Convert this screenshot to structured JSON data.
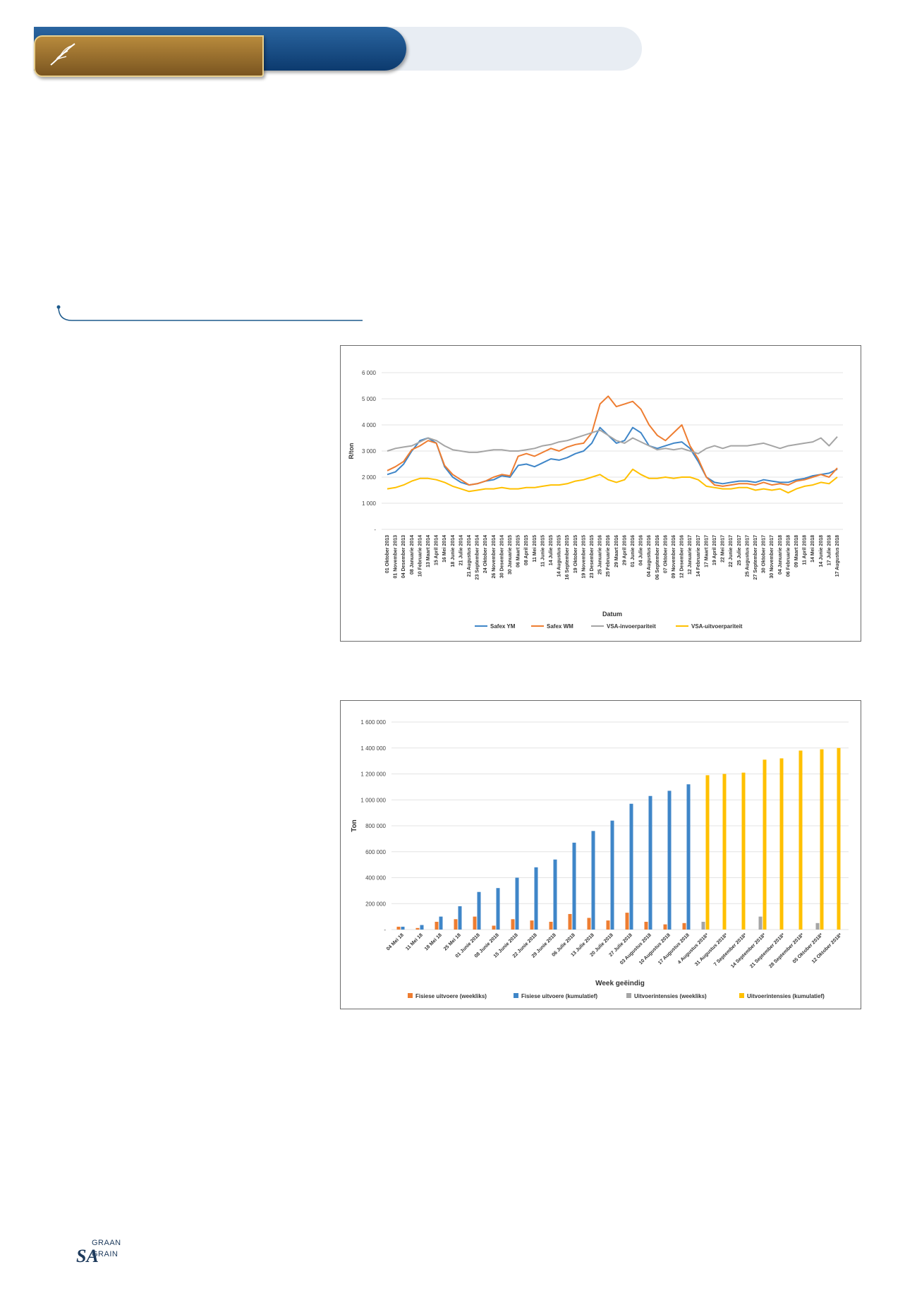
{
  "footer": {
    "logo_sa": "SA",
    "logo_graan": "GRAAN",
    "logo_grain": "GRAIN"
  },
  "colors": {
    "banner_blue": "#12457c",
    "banner_gold": "#9c7130",
    "rule": "#1d5a8c"
  },
  "chart_data": [
    {
      "type": "line",
      "ylabel": "R/ton",
      "xlabel": "Datum",
      "ylim": [
        0,
        6000
      ],
      "yticks": [
        0,
        1000,
        2000,
        3000,
        4000,
        5000,
        6000
      ],
      "ytick_labels": [
        "-",
        "1 000",
        "2 000",
        "3 000",
        "4 000",
        "5 000",
        "6 000"
      ],
      "grid": true,
      "legend": "bottom",
      "x_labels": [
        "01 Oktober 2013",
        "01 November 2013",
        "04 Desember 2013",
        "08 Januarie 2014",
        "10 Februarie 2014",
        "13 Maart 2014",
        "15 April 2014",
        "16 Mei 2014",
        "18 Junie 2014",
        "21 Julie 2014",
        "21 Augustus 2014",
        "23 September 2014",
        "24 Oktober 2014",
        "26 November 2014",
        "30 Desember 2014",
        "30 Januarie 2015",
        "06 Maart 2015",
        "08 April 2015",
        "11 Mei 2015",
        "11 Junie 2015",
        "14 Julie 2015",
        "14 Augustus 2015",
        "16 September 2015",
        "19 Oktober 2015",
        "19 November 2015",
        "23 Desember 2015",
        "25 Januarie 2016",
        "25 Februarie 2016",
        "29 Maart 2016",
        "29 April 2016",
        "01 Junie 2016",
        "04 Julie 2016",
        "04 Augustus 2016",
        "06 September 2016",
        "07 Oktober 2016",
        "09 November 2016",
        "12 Desember 2016",
        "12 Januarie 2017",
        "14 Februarie 2017",
        "17 Maart 2017",
        "19 April 2017",
        "22 Mei 2017",
        "22 Junie 2017",
        "25 Julie 2017",
        "25 Augustus 2017",
        "27 September 2017",
        "30 Oktober 2017",
        "30 November 2017",
        "04 Januarie 2018",
        "06 Februarie 2018",
        "09 Maart 2018",
        "11 April 2018",
        "14 Mei 2018",
        "14 Junie 2018",
        "17 Julie 2018",
        "17 Augustus 2018"
      ],
      "series": [
        {
          "name": "Safex YM",
          "color": "#3f86c8",
          "values": [
            2100,
            2200,
            2500,
            3000,
            3400,
            3500,
            3300,
            2400,
            2000,
            1800,
            1700,
            1750,
            1850,
            1900,
            2050,
            2000,
            2450,
            2500,
            2400,
            2550,
            2700,
            2650,
            2750,
            2900,
            3000,
            3300,
            3900,
            3600,
            3300,
            3400,
            3900,
            3700,
            3200,
            3100,
            3200,
            3300,
            3350,
            3100,
            2600,
            2000,
            1800,
            1750,
            1800,
            1850,
            1850,
            1800,
            1900,
            1850,
            1800,
            1800,
            1900,
            1950,
            2050,
            2100,
            2150,
            2300
          ]
        },
        {
          "name": "Safex WM",
          "color": "#ee7d31",
          "values": [
            2250,
            2400,
            2600,
            3050,
            3200,
            3400,
            3300,
            2450,
            2100,
            1900,
            1700,
            1750,
            1850,
            2000,
            2100,
            2050,
            2800,
            2900,
            2800,
            2950,
            3100,
            3000,
            3150,
            3250,
            3300,
            3700,
            4800,
            5100,
            4700,
            4800,
            4900,
            4600,
            4000,
            3600,
            3400,
            3700,
            4000,
            3200,
            2700,
            2000,
            1700,
            1650,
            1700,
            1750,
            1750,
            1700,
            1800,
            1700,
            1750,
            1700,
            1850,
            1900,
            2000,
            2100,
            2000,
            2350
          ]
        },
        {
          "name": "VSA-invoerpariteit",
          "color": "#a5a5a5",
          "values": [
            3000,
            3100,
            3150,
            3200,
            3350,
            3500,
            3400,
            3200,
            3050,
            3000,
            2950,
            2950,
            3000,
            3050,
            3050,
            3000,
            3000,
            3050,
            3100,
            3200,
            3250,
            3350,
            3400,
            3500,
            3600,
            3700,
            3800,
            3600,
            3400,
            3300,
            3500,
            3350,
            3200,
            3050,
            3100,
            3050,
            3100,
            3000,
            2900,
            3100,
            3200,
            3100,
            3200,
            3200,
            3200,
            3250,
            3300,
            3200,
            3100,
            3200,
            3250,
            3300,
            3350,
            3500,
            3200,
            3550
          ]
        },
        {
          "name": "VSA-uitvoerpariteit",
          "color": "#ffc000",
          "values": [
            1550,
            1600,
            1700,
            1850,
            1950,
            1950,
            1900,
            1800,
            1650,
            1550,
            1450,
            1500,
            1550,
            1550,
            1600,
            1550,
            1550,
            1600,
            1600,
            1650,
            1700,
            1700,
            1750,
            1850,
            1900,
            2000,
            2100,
            1900,
            1800,
            1900,
            2300,
            2100,
            1950,
            1950,
            2000,
            1950,
            2000,
            2000,
            1900,
            1650,
            1600,
            1550,
            1550,
            1600,
            1600,
            1500,
            1550,
            1500,
            1550,
            1400,
            1550,
            1650,
            1700,
            1800,
            1750,
            2000
          ]
        }
      ]
    },
    {
      "type": "bar",
      "ylabel": "Ton",
      "xlabel": "Week geëindig",
      "ylim": [
        0,
        1600000
      ],
      "yticks": [
        0,
        200000,
        400000,
        600000,
        800000,
        1000000,
        1200000,
        1400000,
        1600000
      ],
      "ytick_labels": [
        "-",
        "200 000",
        "400 000",
        "600 000",
        "800 000",
        "1 000 000",
        "1 200 000",
        "1 400 000",
        "1 600 000"
      ],
      "grid": true,
      "legend": "bottom",
      "categories": [
        "04 Mei 18",
        "11 Mei 18",
        "18 Mei 18",
        "25 Mei 18",
        "01 Junie 2018",
        "08 Junie 2018",
        "15 Junie 2018",
        "22 Junie 2018",
        "29 Junie 2018",
        "06 Julie 2018",
        "13 Julie 2018",
        "20 Julie 2018",
        "27 Julie 2018",
        "03 Augustus 2018",
        "10 Augustus 2018",
        "17 Augustus 2018",
        "4 Augustus 2018*",
        "31 Augustus 2018*",
        "7 September 2018*",
        "14 September 2018*",
        "21 September 2018*",
        "28 September 2018*",
        "05 Oktober 2018*",
        "12 Oktober 2018*"
      ],
      "series": [
        {
          "name": "Fisiese uitvoere (weekliks)",
          "color": "#ee7d31",
          "values": [
            22000,
            12000,
            60000,
            80000,
            100000,
            30000,
            80000,
            70000,
            60000,
            120000,
            90000,
            70000,
            130000,
            60000,
            40000,
            50000,
            null,
            null,
            null,
            null,
            null,
            null,
            null,
            null
          ]
        },
        {
          "name": "Fisiese uitvoere (kumulatief)",
          "color": "#3f86c8",
          "values": [
            22000,
            35000,
            100000,
            180000,
            290000,
            320000,
            400000,
            480000,
            540000,
            670000,
            760000,
            840000,
            970000,
            1030000,
            1070000,
            1120000,
            null,
            null,
            null,
            null,
            null,
            null,
            null,
            null
          ]
        },
        {
          "name": "Uitvoerintensies (weekliks)",
          "color": "#a5a5a5",
          "values": [
            null,
            null,
            null,
            null,
            null,
            null,
            null,
            null,
            null,
            null,
            null,
            null,
            null,
            null,
            null,
            null,
            60000,
            null,
            null,
            100000,
            null,
            null,
            50000,
            null
          ]
        },
        {
          "name": "Uitvoerintensies (kumulatief)",
          "color": "#ffc000",
          "values": [
            null,
            null,
            null,
            null,
            null,
            null,
            null,
            null,
            null,
            null,
            null,
            null,
            null,
            null,
            null,
            null,
            1190000,
            1200000,
            1210000,
            1310000,
            1320000,
            1380000,
            1390000,
            1400000
          ]
        }
      ]
    }
  ]
}
